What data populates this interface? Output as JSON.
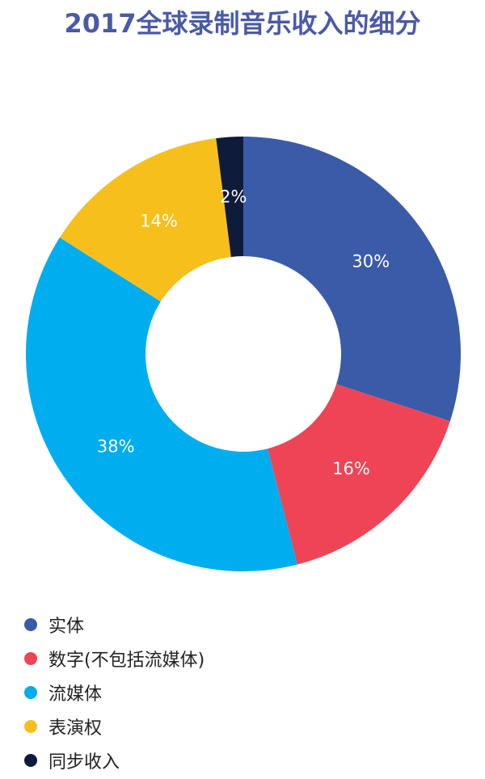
{
  "chart_data": {
    "type": "pie",
    "variant": "donut",
    "title": "2017全球录制音乐收入的细分",
    "categories": [
      "实体",
      "数字(不包括流媒体)",
      "流媒体",
      "表演权",
      "同步收入"
    ],
    "values": [
      30,
      16,
      38,
      14,
      2
    ],
    "value_labels": [
      "30%",
      "16%",
      "38%",
      "14%",
      "2%"
    ],
    "colors": [
      "#3a5ba8",
      "#ef4455",
      "#00adef",
      "#f6bf1b",
      "#0f1b3b"
    ],
    "legend_position": "bottom-left",
    "label_color": "#ffffff"
  }
}
